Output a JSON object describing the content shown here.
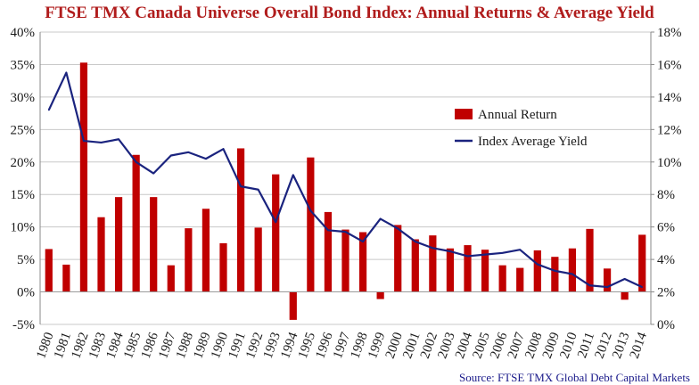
{
  "chart_data": {
    "type": "bar+line",
    "title": "FTSE TMX Canada Universe Overall Bond Index: Annual Returns & Average Yield",
    "source": "Source: FTSE TMX Global Debt Capital Markets",
    "categories": [
      "1980",
      "1981",
      "1982",
      "1983",
      "1984",
      "1985",
      "1986",
      "1987",
      "1988",
      "1989",
      "1990",
      "1991",
      "1992",
      "1993",
      "1994",
      "1995",
      "1996",
      "1997",
      "1998",
      "1999",
      "2000",
      "2001",
      "2002",
      "2003",
      "2004",
      "2005",
      "2006",
      "2007",
      "2008",
      "2009",
      "2010",
      "2011",
      "2012",
      "2013",
      "2014"
    ],
    "series": [
      {
        "name": "Annual Return",
        "type": "bar",
        "axis": "left",
        "color": "#c00000",
        "values": [
          6.6,
          4.2,
          35.3,
          11.5,
          14.6,
          21.1,
          14.6,
          4.1,
          9.8,
          12.8,
          7.5,
          22.1,
          9.9,
          18.1,
          -4.3,
          20.7,
          12.3,
          9.6,
          9.2,
          -1.1,
          10.3,
          8.1,
          8.7,
          6.7,
          7.2,
          6.5,
          4.1,
          3.7,
          6.4,
          5.4,
          6.7,
          9.7,
          3.6,
          -1.2,
          8.8
        ]
      },
      {
        "name": "Index Average Yield",
        "type": "line",
        "axis": "right",
        "color": "#1a237e",
        "values": [
          13.2,
          15.5,
          11.3,
          11.2,
          11.4,
          10.0,
          9.3,
          10.4,
          10.6,
          10.2,
          10.8,
          8.5,
          8.3,
          6.3,
          9.2,
          7.0,
          5.8,
          5.7,
          5.1,
          6.5,
          5.9,
          5.1,
          4.7,
          4.5,
          4.2,
          4.3,
          4.4,
          4.6,
          3.7,
          3.3,
          3.1,
          2.4,
          2.3,
          2.8,
          2.3
        ]
      }
    ],
    "left_axis": {
      "min": -5,
      "max": 40,
      "step": 5,
      "labels": [
        "-5%",
        "0%",
        "5%",
        "10%",
        "15%",
        "20%",
        "25%",
        "30%",
        "35%",
        "40%"
      ]
    },
    "right_axis": {
      "min": 0,
      "max": 18,
      "step": 2,
      "labels": [
        "0%",
        "2%",
        "4%",
        "6%",
        "8%",
        "10%",
        "12%",
        "14%",
        "16%",
        "18%"
      ]
    },
    "grid": true,
    "legend_position": "right-center"
  }
}
